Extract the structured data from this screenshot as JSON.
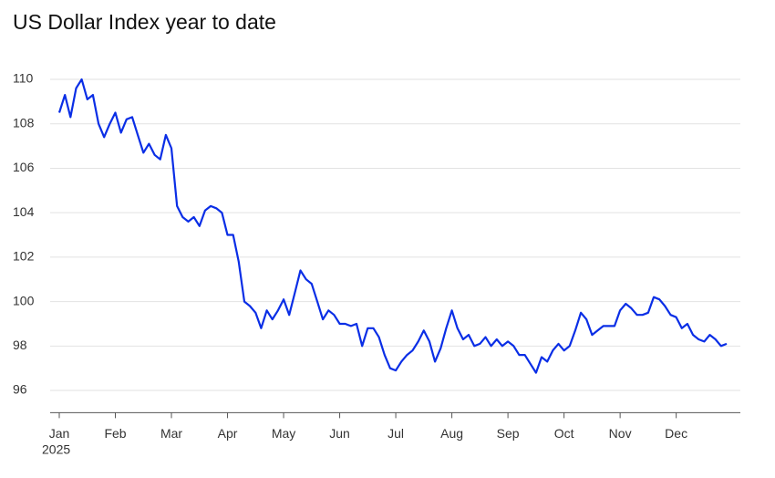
{
  "chart_data": {
    "type": "line",
    "title": "US Dollar Index year to date",
    "year_label": "2025",
    "series": [
      {
        "name": "US Dollar Index",
        "color": "#0a2ee6",
        "values": [
          108.5,
          109.3,
          108.3,
          109.6,
          110.0,
          109.1,
          109.3,
          108.0,
          107.4,
          108.0,
          108.5,
          107.6,
          108.2,
          108.3,
          107.5,
          106.7,
          107.1,
          106.6,
          106.4,
          107.5,
          106.9,
          104.3,
          103.8,
          103.6,
          103.8,
          103.4,
          104.1,
          104.3,
          104.2,
          104.0,
          103.0,
          103.0,
          101.8,
          100.0,
          99.8,
          99.5,
          98.8,
          99.6,
          99.2,
          99.6,
          100.1,
          99.4,
          100.4,
          101.4,
          101.0,
          100.8,
          100.0,
          99.2,
          99.6,
          99.4,
          99.0,
          99.0,
          98.9,
          99.0,
          98.0,
          98.8,
          98.8,
          98.4,
          97.6,
          97.0,
          96.9,
          97.3,
          97.6,
          97.8,
          98.2,
          98.7,
          98.2,
          97.3,
          97.9,
          98.8,
          99.6,
          98.8,
          98.3,
          98.5,
          98.0,
          98.1,
          98.4,
          98.0,
          98.3,
          98.0,
          98.2,
          98.0,
          97.6,
          97.6,
          97.2,
          96.8,
          97.5,
          97.3,
          97.8,
          98.1,
          97.8,
          98.0,
          98.7,
          99.5,
          99.2,
          98.5,
          98.7,
          98.9,
          98.9,
          98.9,
          99.6,
          99.9,
          99.7,
          99.4,
          99.4,
          99.5,
          100.2,
          100.1,
          99.8,
          99.4,
          99.3,
          98.8,
          99.0,
          98.5,
          98.3,
          98.2,
          98.5,
          98.3,
          98.0,
          98.1
        ]
      }
    ],
    "xlim": [
      0,
      119
    ],
    "xticks": [
      {
        "value": 0,
        "label": "Jan"
      },
      {
        "value": 10,
        "label": "Feb"
      },
      {
        "value": 20,
        "label": "Mar"
      },
      {
        "value": 30,
        "label": "Apr"
      },
      {
        "value": 40,
        "label": "May"
      },
      {
        "value": 50,
        "label": "Jun"
      },
      {
        "value": 60,
        "label": "Jul"
      },
      {
        "value": 70,
        "label": "Aug"
      },
      {
        "value": 80,
        "label": "Sep"
      },
      {
        "value": 90,
        "label": "Oct"
      },
      {
        "value": 100,
        "label": "Nov"
      },
      {
        "value": 110,
        "label": "Dec"
      }
    ],
    "ylim": [
      95,
      110
    ],
    "yticks": [
      96,
      98,
      100,
      102,
      104,
      106,
      108,
      110
    ],
    "grid": true
  }
}
